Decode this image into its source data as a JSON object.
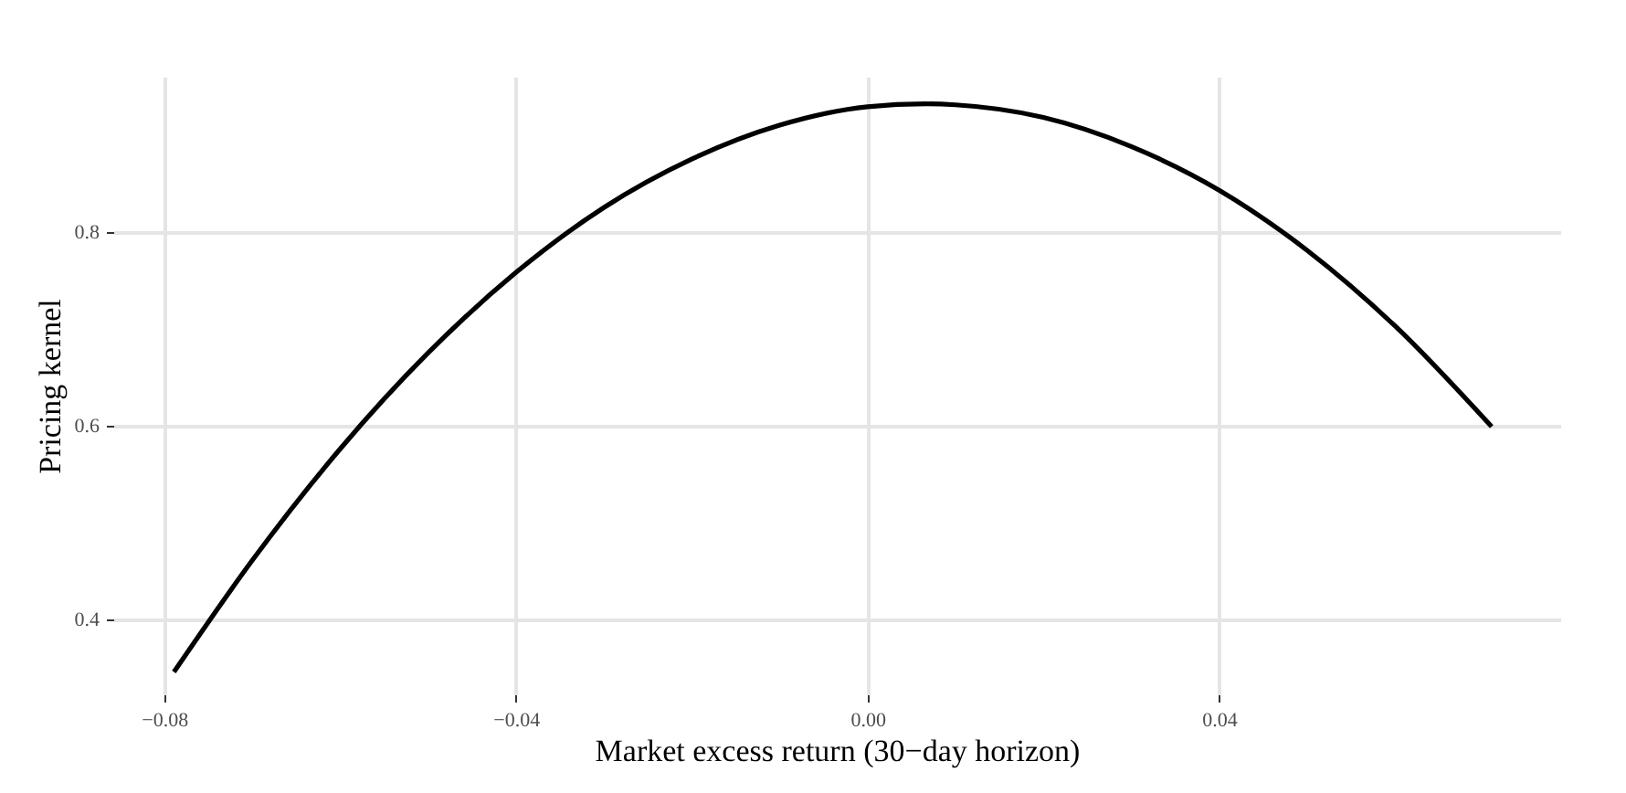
{
  "chart_data": {
    "type": "line",
    "xlabel": "Market excess return (30−day horizon)",
    "ylabel": "Pricing kernel",
    "x": [
      -0.0789,
      -0.07,
      -0.06,
      -0.05,
      -0.04,
      -0.03,
      -0.02,
      -0.01,
      0.0,
      0.0066,
      0.01,
      0.02,
      0.03,
      0.04,
      0.05,
      0.06,
      0.071
    ],
    "series": [
      {
        "color": "#000000",
        "values": [
          0.346,
          0.461,
          0.576,
          0.675,
          0.758,
          0.825,
          0.875,
          0.91,
          0.929,
          0.932,
          0.931,
          0.918,
          0.888,
          0.843,
          0.781,
          0.703,
          0.599
        ]
      }
    ],
    "xlim": [
      -0.0858,
      0.0788
    ],
    "ylim": [
      0.323,
      0.96
    ],
    "xticks": [
      {
        "value": -0.08,
        "label": "−0.08"
      },
      {
        "value": -0.04,
        "label": "−0.04"
      },
      {
        "value": 0.0,
        "label": "0.00"
      },
      0.04
    ],
    "yticks": [
      0.4,
      0.6,
      0.8
    ],
    "grid": true,
    "marker": "none",
    "line_style": "solid"
  }
}
